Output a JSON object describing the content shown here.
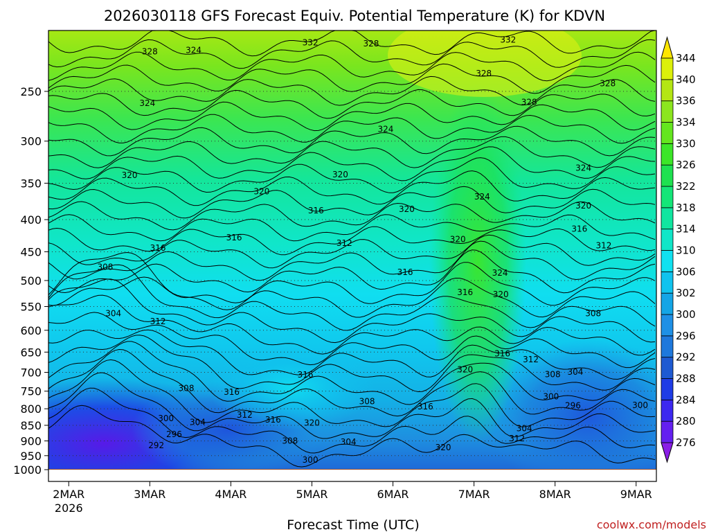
{
  "chart_data": {
    "type": "heatmap",
    "title": "2026030118 GFS Forecast Equiv. Potential Temperature (K) for KDVN",
    "xlabel": "Forecast Time (UTC)",
    "ylabel": "",
    "credit": "coolwx.com/models",
    "x_axis": {
      "ticks": [
        {
          "label": "2MAR",
          "sublabel": "2026",
          "day": 2
        },
        {
          "label": "3MAR",
          "sublabel": "",
          "day": 3
        },
        {
          "label": "4MAR",
          "sublabel": "",
          "day": 4
        },
        {
          "label": "5MAR",
          "sublabel": "",
          "day": 5
        },
        {
          "label": "6MAR",
          "sublabel": "",
          "day": 6
        },
        {
          "label": "7MAR",
          "sublabel": "",
          "day": 7
        },
        {
          "label": "8MAR",
          "sublabel": "",
          "day": 8
        },
        {
          "label": "9MAR",
          "sublabel": "",
          "day": 9
        }
      ],
      "range_days": [
        1.75,
        9.25
      ]
    },
    "y_axis": {
      "scale": "log",
      "units": "hPa",
      "range": [
        1000,
        200
      ],
      "ticks": [
        250,
        300,
        350,
        400,
        450,
        500,
        550,
        600,
        650,
        700,
        750,
        800,
        850,
        900,
        950,
        1000
      ]
    },
    "grid": "dotted horizontal at pressure ticks",
    "colorbar": {
      "levels": [
        276,
        280,
        284,
        288,
        292,
        296,
        300,
        302,
        306,
        310,
        314,
        318,
        322,
        326,
        330,
        334,
        336,
        340,
        344
      ],
      "colors": [
        "#8a1ee6",
        "#6420f0",
        "#3c28f0",
        "#1e3ce6",
        "#1e5ad2",
        "#1e78dc",
        "#1e90e6",
        "#14a5e6",
        "#10c3ee",
        "#10e1f0",
        "#10e6c8",
        "#10e6a0",
        "#14e678",
        "#1ee150",
        "#3ce628",
        "#64e61e",
        "#8ce61e",
        "#b4e614",
        "#dcf00a",
        "#ffe600"
      ]
    },
    "contour_labels": [
      {
        "value": 332,
        "day": 4.98,
        "p": 209
      },
      {
        "value": 332,
        "day": 7.42,
        "p": 207
      },
      {
        "value": 328,
        "day": 3.0,
        "p": 216
      },
      {
        "value": 328,
        "day": 5.73,
        "p": 210
      },
      {
        "value": 328,
        "day": 7.12,
        "p": 234
      },
      {
        "value": 328,
        "day": 7.68,
        "p": 260
      },
      {
        "value": 328,
        "day": 8.65,
        "p": 243
      },
      {
        "value": 324,
        "day": 3.54,
        "p": 215
      },
      {
        "value": 324,
        "day": 2.97,
        "p": 261
      },
      {
        "value": 324,
        "day": 5.91,
        "p": 287
      },
      {
        "value": 324,
        "day": 7.1,
        "p": 368
      },
      {
        "value": 324,
        "day": 8.35,
        "p": 331
      },
      {
        "value": 324,
        "day": 7.32,
        "p": 486
      },
      {
        "value": 320,
        "day": 2.75,
        "p": 340
      },
      {
        "value": 320,
        "day": 4.38,
        "p": 361
      },
      {
        "value": 320,
        "day": 5.35,
        "p": 339
      },
      {
        "value": 320,
        "day": 6.17,
        "p": 385
      },
      {
        "value": 320,
        "day": 6.8,
        "p": 430
      },
      {
        "value": 320,
        "day": 8.35,
        "p": 380
      },
      {
        "value": 320,
        "day": 7.33,
        "p": 526
      },
      {
        "value": 320,
        "day": 6.89,
        "p": 693
      },
      {
        "value": 320,
        "day": 5.0,
        "p": 843
      },
      {
        "value": 320,
        "day": 6.62,
        "p": 922
      },
      {
        "value": 316,
        "day": 3.1,
        "p": 444
      },
      {
        "value": 316,
        "day": 4.04,
        "p": 427
      },
      {
        "value": 316,
        "day": 5.05,
        "p": 387
      },
      {
        "value": 316,
        "day": 6.15,
        "p": 485
      },
      {
        "value": 316,
        "day": 6.89,
        "p": 522
      },
      {
        "value": 316,
        "day": 8.3,
        "p": 414
      },
      {
        "value": 316,
        "day": 7.35,
        "p": 654
      },
      {
        "value": 316,
        "day": 4.92,
        "p": 706
      },
      {
        "value": 316,
        "day": 4.01,
        "p": 753
      },
      {
        "value": 316,
        "day": 4.52,
        "p": 833
      },
      {
        "value": 316,
        "day": 6.4,
        "p": 794
      },
      {
        "value": 312,
        "day": 5.4,
        "p": 436
      },
      {
        "value": 312,
        "day": 3.1,
        "p": 581
      },
      {
        "value": 312,
        "day": 8.6,
        "p": 440
      },
      {
        "value": 312,
        "day": 7.7,
        "p": 668
      },
      {
        "value": 312,
        "day": 4.17,
        "p": 818
      },
      {
        "value": 312,
        "day": 7.53,
        "p": 892
      },
      {
        "value": 308,
        "day": 2.45,
        "p": 476
      },
      {
        "value": 308,
        "day": 3.45,
        "p": 742
      },
      {
        "value": 308,
        "day": 5.68,
        "p": 779
      },
      {
        "value": 308,
        "day": 7.97,
        "p": 705
      },
      {
        "value": 308,
        "day": 8.47,
        "p": 564
      },
      {
        "value": 308,
        "day": 4.73,
        "p": 900
      },
      {
        "value": 304,
        "day": 2.55,
        "p": 564
      },
      {
        "value": 304,
        "day": 3.59,
        "p": 840
      },
      {
        "value": 304,
        "day": 8.25,
        "p": 699
      },
      {
        "value": 304,
        "day": 5.45,
        "p": 903
      },
      {
        "value": 304,
        "day": 7.62,
        "p": 860
      },
      {
        "value": 300,
        "day": 3.2,
        "p": 829
      },
      {
        "value": 300,
        "day": 7.95,
        "p": 765
      },
      {
        "value": 300,
        "day": 9.05,
        "p": 790
      },
      {
        "value": 300,
        "day": 4.98,
        "p": 965
      },
      {
        "value": 296,
        "day": 3.3,
        "p": 879
      },
      {
        "value": 296,
        "day": 8.22,
        "p": 791
      },
      {
        "value": 292,
        "day": 3.08,
        "p": 915
      }
    ]
  }
}
